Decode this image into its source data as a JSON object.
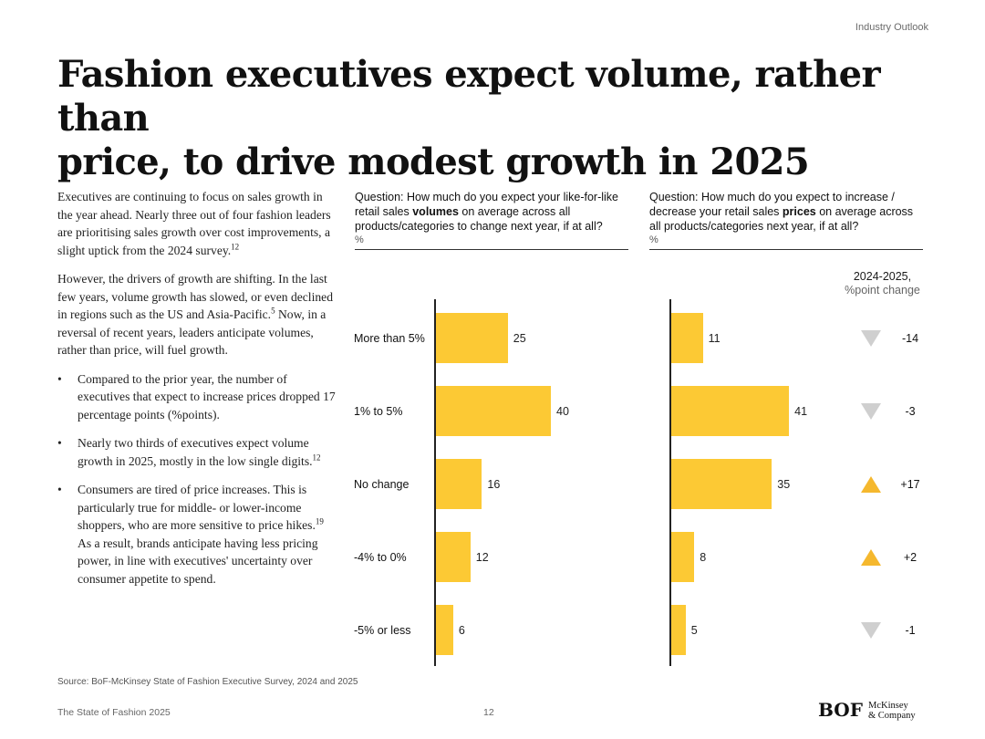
{
  "header": {
    "section": "Industry Outlook",
    "title_line1": "Fashion executives expect volume, rather than",
    "title_line2": "price, to drive modest growth in 2025"
  },
  "body": {
    "para1": "Executives are continuing to focus on sales growth in the year ahead. Nearly three out of four fashion leaders are prioritising sales growth over cost improvements, a slight uptick from the 2024 survey.",
    "para1_ref": "12",
    "para2_a": "However, the drivers of growth are shifting. In the last few years, volume growth has slowed, or even declined in regions such as the US and Asia-Pacific.",
    "para2_ref": "5",
    "para2_b": " Now, in a reversal of recent years, leaders anticipate volumes, rather than price, will fuel growth.",
    "bullet1": "Compared to the prior year, the number of executives that expect to increase prices dropped 17 percentage points (%points).",
    "bullet2": "Nearly two thirds of executives expect volume growth in 2025, mostly in the low single digits.",
    "bullet2_ref": "12",
    "bullet3_a": "Consumers are tired of price increases. This is particularly true for middle- or lower-income shoppers, who are more sensitive to price hikes.",
    "bullet3_ref": "19",
    "bullet3_b": " As a result, brands anticipate having less pricing power, in line with executives' uncertainty over consumer appetite to spend."
  },
  "chart_data": {
    "type": "bar",
    "orientation": "horizontal",
    "categories": [
      "More than 5%",
      "1% to 5%",
      "No change",
      "-4% to 0%",
      "-5% or less"
    ],
    "series": [
      {
        "name": "volumes",
        "question_pre": "Question: How much do you expect your like-for-like retail sales ",
        "question_bold": "volumes",
        "question_post": " on average across all products/categories to change next year, if at all?",
        "unit": "%",
        "values": [
          25,
          40,
          16,
          12,
          6
        ]
      },
      {
        "name": "prices",
        "question_pre": "Question: How much do you expect to increase / decrease your retail sales ",
        "question_bold": "prices",
        "question_post": " on average across all products/categories next year, if at all?",
        "unit": "%",
        "values": [
          11,
          41,
          35,
          8,
          5
        ]
      }
    ],
    "change": {
      "header": "2024-2025,",
      "subheader": "%point change",
      "values": [
        -14,
        -3,
        17,
        2,
        -1
      ],
      "labels": [
        "-14",
        "-3",
        "+17",
        "+2",
        "-1"
      ]
    },
    "bar_color": "#fcc934",
    "up_color": "#f5b82e",
    "down_color": "#cfcfcf"
  },
  "footer": {
    "source": "Source: BoF-McKinsey State of Fashion Executive Survey, 2024 and 2025",
    "publication": "The State of Fashion 2025",
    "page": "12",
    "logo_bof": "BOF",
    "logo_mck_1": "McKinsey",
    "logo_mck_2": "& Company"
  }
}
